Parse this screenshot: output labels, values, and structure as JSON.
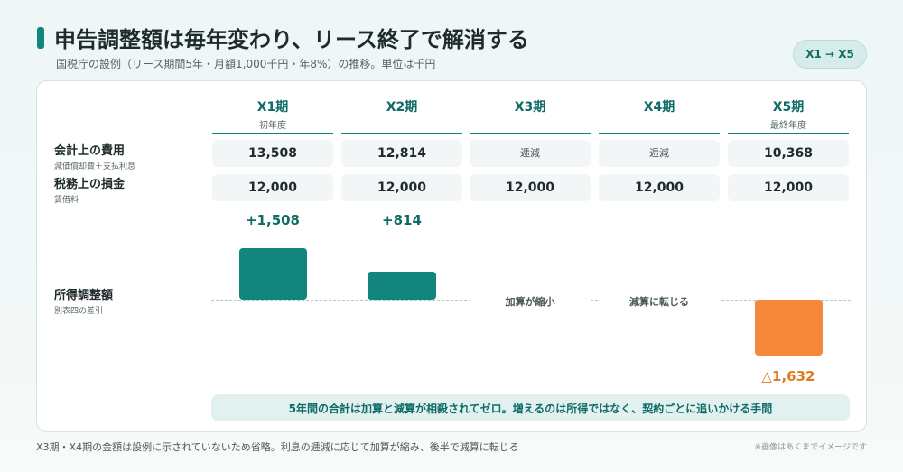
{
  "header": {
    "title": "申告調整額は毎年変わり、リース終了で解消する",
    "subtitle": "国税庁の設例（リース期間5年・月額1,000千円・年8%）の推移。単位は千円",
    "period_badge": "X1 → X5"
  },
  "columns": [
    {
      "name": "X1期",
      "sub": "初年度"
    },
    {
      "name": "X2期",
      "sub": ""
    },
    {
      "name": "X3期",
      "sub": ""
    },
    {
      "name": "X4期",
      "sub": ""
    },
    {
      "name": "X5期",
      "sub": "最終年度"
    }
  ],
  "rows": {
    "accounting": {
      "label": "会計上の費用",
      "sub": "減価償却費＋支払利息",
      "values": [
        "13,508",
        "12,814",
        "逓減",
        "逓減",
        "10,368"
      ]
    },
    "tax": {
      "label": "税務上の損金",
      "sub": "賃借料",
      "values": [
        "12,000",
        "12,000",
        "12,000",
        "12,000",
        "12,000"
      ]
    }
  },
  "adjustment": {
    "label": "所得調整額",
    "sub": "別表四の差引",
    "value_labels": [
      "+1,508",
      "+814",
      "",
      "",
      "△1,632"
    ],
    "values": [
      1508,
      814,
      null,
      null,
      -1632
    ],
    "trend_labels": [
      "",
      "",
      "加算が縮小",
      "減算に転じる",
      ""
    ],
    "colors": {
      "positive": "#11857e",
      "negative": "#f5883a"
    }
  },
  "summary": "5年間の合計は加算と減算が相殺されてゼロ。増えるのは所得ではなく、契約ごとに追いかける手間",
  "footnote": "X3期・X4期の金額は設例に示されていないため省略。利息の逓減に応じて加算が縮み、後半で減算に転じる",
  "disclaimer": "※画像はあくまでイメージです"
}
